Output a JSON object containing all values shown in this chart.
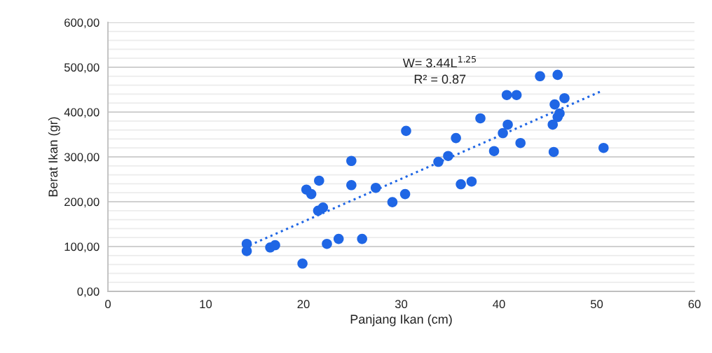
{
  "chart_data": {
    "type": "scatter",
    "xlabel": "Panjang Ikan (cm)",
    "ylabel": "Berat Ikan (gr)",
    "annotations": [
      "W= 3.44L$^{1.25}$",
      "R² = 0.87"
    ],
    "xlim": [
      0,
      60
    ],
    "xticks": [
      0,
      10,
      20,
      30,
      40,
      50,
      60
    ],
    "ylim": [
      0,
      600
    ],
    "yticks": [
      {
        "value": 0,
        "label": "0,00"
      },
      {
        "value": 20,
        "label": null
      },
      {
        "value": 40,
        "label": null
      },
      {
        "value": 60,
        "label": null
      },
      {
        "value": 80,
        "label": null
      },
      {
        "value": 100,
        "label": "100,00"
      },
      {
        "value": 120,
        "label": null
      },
      {
        "value": 140,
        "label": null
      },
      {
        "value": 160,
        "label": null
      },
      {
        "value": 180,
        "label": null
      },
      {
        "value": 200,
        "label": "200,00"
      },
      {
        "value": 220,
        "label": null
      },
      {
        "value": 240,
        "label": null
      },
      {
        "value": 260,
        "label": null
      },
      {
        "value": 280,
        "label": null
      },
      {
        "value": 300,
        "label": "300,00"
      },
      {
        "value": 320,
        "label": null
      },
      {
        "value": 340,
        "label": null
      },
      {
        "value": 360,
        "label": null
      },
      {
        "value": 380,
        "label": null
      },
      {
        "value": 400,
        "label": "400,00"
      },
      {
        "value": 420,
        "label": null
      },
      {
        "value": 440,
        "label": null
      },
      {
        "value": 460,
        "label": null
      },
      {
        "value": 480,
        "label": null
      },
      {
        "value": 500,
        "label": "500,00"
      },
      {
        "value": 520,
        "label": null
      },
      {
        "value": 540,
        "label": null
      },
      {
        "value": 560,
        "label": null
      },
      {
        "value": 580,
        "label": null
      },
      {
        "value": 600,
        "label": "600,00"
      }
    ],
    "grid": "y",
    "legend": false,
    "series": [
      {
        "color": "#1f66e5",
        "marker": "circle",
        "x": [
          14.2,
          14.2,
          16.6,
          17.1,
          19.9,
          20.3,
          20.8,
          21.6,
          21.5,
          22.0,
          22.4,
          23.6,
          24.9,
          24.9,
          26.0,
          27.4,
          29.1,
          30.4,
          30.5,
          33.8,
          34.8,
          35.6,
          36.1,
          37.2,
          38.1,
          39.5,
          40.4,
          40.8,
          40.9,
          41.8,
          42.2,
          44.2,
          46.0,
          45.7,
          46.7,
          46.2,
          46.0,
          45.5,
          45.6,
          50.7
        ],
        "values": [
          106,
          90,
          98,
          103,
          62,
          227,
          217,
          247,
          180,
          187,
          106,
          117,
          291,
          237,
          117,
          231,
          199,
          217,
          358,
          289,
          302,
          342,
          239,
          245,
          386,
          313,
          353,
          438,
          372,
          438,
          331,
          480,
          483,
          417,
          431,
          397,
          389,
          372,
          311,
          320
        ]
      },
      {
        "type": "line",
        "color": "#1f66e5",
        "line_style": "dotted",
        "marker": "none",
        "x": [
          14.5,
          32.5,
          50.5
        ],
        "values": [
          103,
          275,
          447
        ]
      }
    ]
  }
}
